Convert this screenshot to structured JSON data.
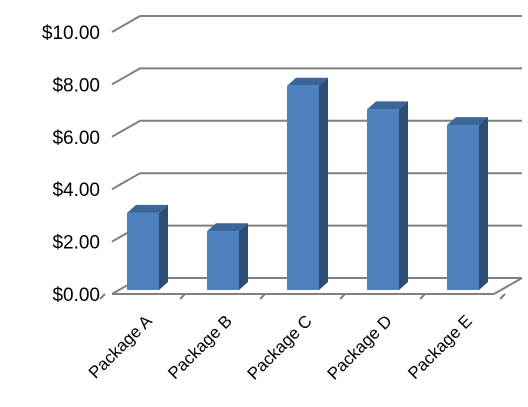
{
  "chart_data": {
    "type": "bar",
    "title": "",
    "xlabel": "",
    "ylabel": "",
    "categories": [
      "Package A",
      "Package B",
      "Package C",
      "Package D",
      "Package E"
    ],
    "values": [
      3.25,
      2.55,
      8.1,
      7.2,
      6.6
    ],
    "ylim": [
      0,
      10
    ],
    "yticks": [
      0,
      2,
      4,
      6,
      8,
      10
    ],
    "ytick_labels": [
      "$0.00",
      "$2.00",
      "$4.00",
      "$6.00",
      "$8.00",
      "$10.00"
    ],
    "grid": true,
    "legend": "none",
    "style": "3d-column",
    "colors": {
      "bar_front": "#4f81bd",
      "bar_side": "#2c4d75",
      "bar_top": "#3a6699",
      "grid": "#808080"
    }
  }
}
